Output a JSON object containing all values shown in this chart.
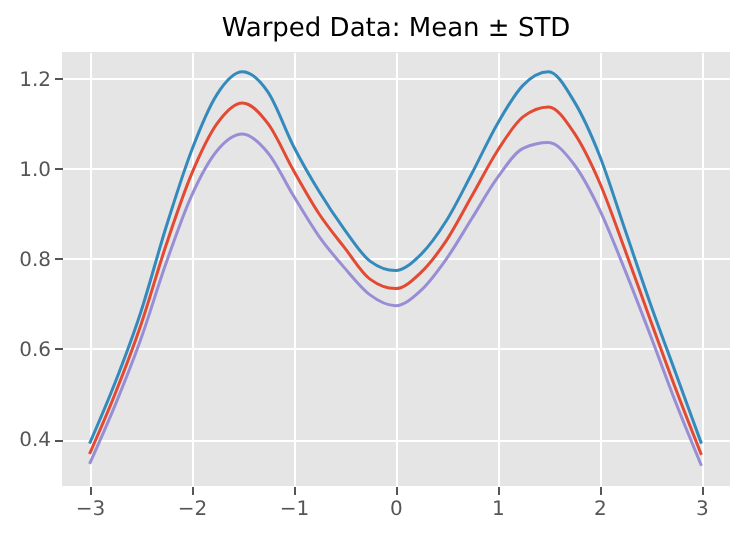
{
  "chart_data": {
    "type": "line",
    "title": "Warped Data: Mean ± STD",
    "x": [
      -3,
      -2.75,
      -2.5,
      -2.25,
      -2,
      -1.75,
      -1.5,
      -1.25,
      -1,
      -0.75,
      -0.5,
      -0.25,
      0,
      0.25,
      0.5,
      0.75,
      1,
      1.25,
      1.5,
      1.75,
      2,
      2.25,
      2.5,
      2.75,
      3
    ],
    "series": [
      {
        "color": "#348abd",
        "values": [
          0.39,
          0.525,
          0.68,
          0.87,
          1.04,
          1.165,
          1.215,
          1.17,
          1.05,
          0.95,
          0.865,
          0.795,
          0.774,
          0.81,
          0.885,
          0.99,
          1.1,
          1.185,
          1.215,
          1.15,
          1.03,
          0.865,
          0.7,
          0.545,
          0.39
        ]
      },
      {
        "color": "#e24a33",
        "values": [
          0.367,
          0.5,
          0.651,
          0.83,
          0.988,
          1.1,
          1.146,
          1.1,
          0.996,
          0.9,
          0.825,
          0.755,
          0.734,
          0.77,
          0.841,
          0.94,
          1.04,
          1.115,
          1.137,
          1.08,
          0.97,
          0.82,
          0.664,
          0.51,
          0.365
        ]
      },
      {
        "color": "#988ed5",
        "values": [
          0.345,
          0.475,
          0.62,
          0.79,
          0.94,
          1.04,
          1.077,
          1.035,
          0.94,
          0.85,
          0.78,
          0.72,
          0.696,
          0.73,
          0.8,
          0.89,
          0.98,
          1.045,
          1.058,
          1.01,
          0.91,
          0.775,
          0.63,
          0.48,
          0.341
        ]
      }
    ],
    "xlim": [
      -3.27,
      3.28
    ],
    "xticks": [
      {
        "value": -3,
        "label": "−3"
      },
      {
        "value": -2,
        "label": "−2"
      },
      {
        "value": -1,
        "label": "−1"
      },
      0,
      1,
      2,
      3
    ],
    "ylim": [
      0.296,
      1.259
    ],
    "yticks": [
      0.4,
      0.6,
      0.8,
      {
        "value": 1,
        "label": "1.0"
      },
      1.2
    ],
    "grid": true,
    "marker": "none",
    "line_style": "solid"
  }
}
